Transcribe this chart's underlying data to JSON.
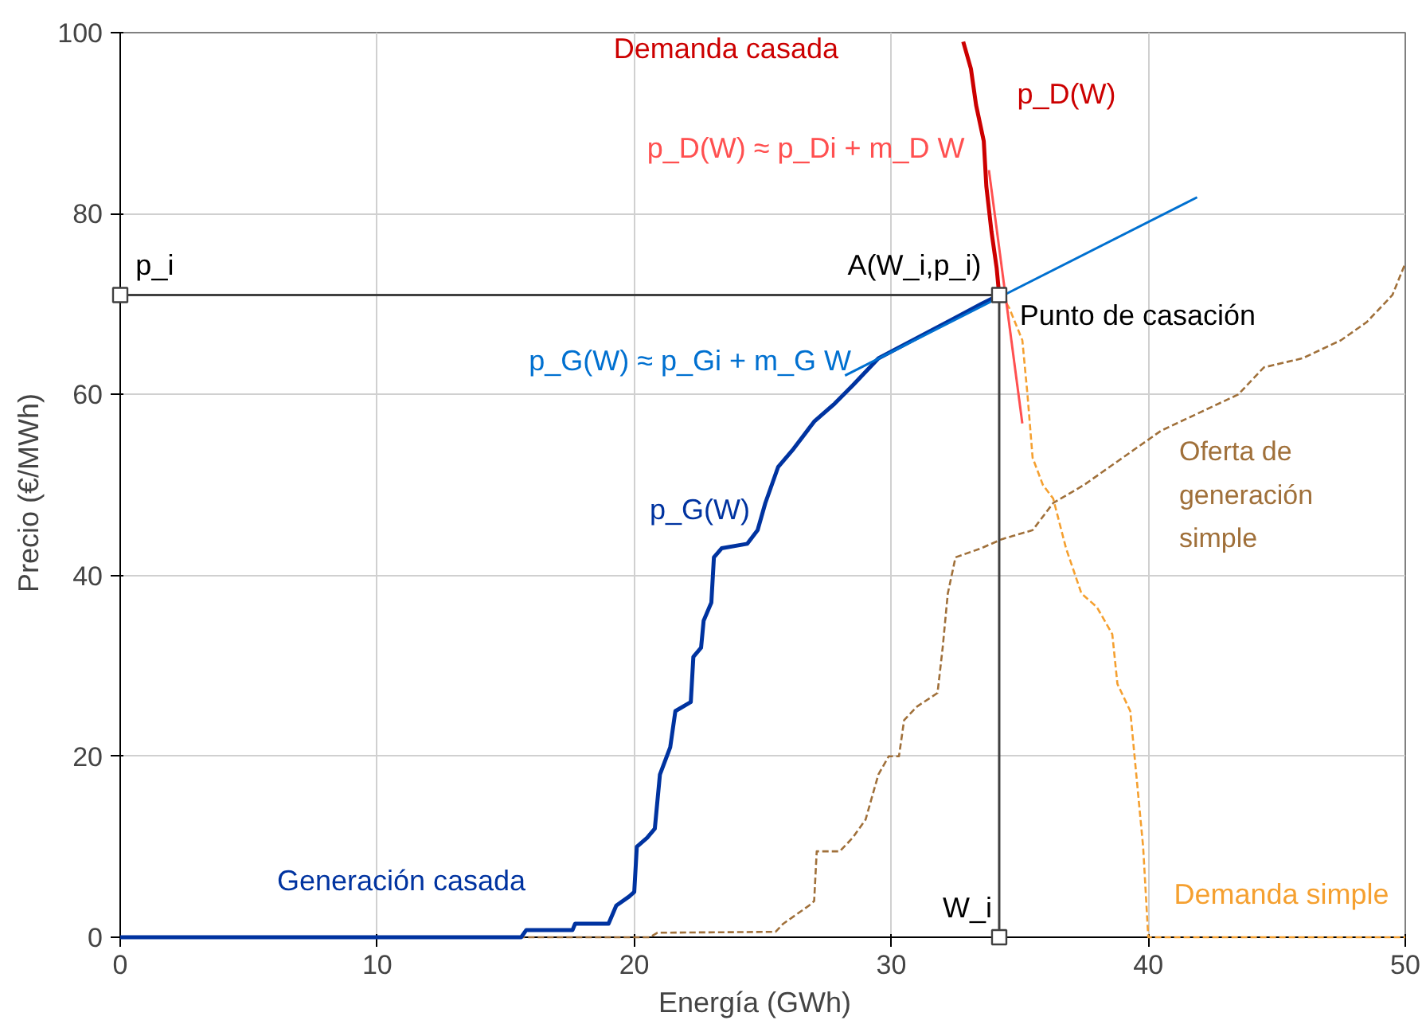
{
  "chart_data": {
    "type": "line",
    "xlabel": "Energía   (GWh)",
    "ylabel": "Precio   (€/MWh)",
    "xlim": [
      0,
      50
    ],
    "ylim": [
      0,
      100
    ],
    "xticks": [
      0,
      10,
      20,
      30,
      40,
      50
    ],
    "yticks": [
      0,
      20,
      40,
      60,
      80,
      100
    ],
    "grid": true,
    "series": [
      {
        "color": "#a0703a",
        "line_style": "dashed",
        "x": [
          15.5,
          20.6,
          20.9,
          25.5,
          25.8,
          26.3,
          26.8,
          27,
          27.1,
          28,
          28.5,
          29.0,
          29.5,
          29.9,
          30.3,
          30.5,
          31,
          31.8,
          32.0,
          32.2,
          32.5,
          33.5,
          34.3,
          35.5,
          36.3,
          37.5,
          38.5,
          39.5,
          40.5,
          42,
          43.5,
          44.5,
          46,
          47.5,
          48.5,
          49.5,
          50
        ],
        "values": [
          0,
          0,
          0.5,
          0.6,
          1.5,
          2.5,
          3.5,
          4,
          9.5,
          9.5,
          11,
          13,
          18,
          20,
          20,
          24,
          25.5,
          27,
          32,
          38,
          42,
          43,
          44,
          45,
          48,
          50,
          52,
          54,
          56,
          58,
          60,
          63,
          64,
          66,
          68,
          71,
          74.5
        ]
      },
      {
        "color": "#f5a030",
        "line_style": "dashed",
        "x": [
          34.3,
          34.6,
          35.1,
          35.3,
          35.5,
          35.9,
          36.3,
          36.8,
          37.4,
          38.0,
          38.6,
          38.8,
          39.3,
          39.6,
          39.8,
          40.0,
          50
        ],
        "values": [
          71,
          69.5,
          66,
          60,
          53,
          50,
          48.5,
          43,
          38,
          36.5,
          33.5,
          28,
          25,
          16,
          10,
          0,
          0
        ]
      },
      {
        "color": "#0033a0",
        "line_style": "solid",
        "x": [
          0,
          15.6,
          15.8,
          17.6,
          17.7,
          19.0,
          19.3,
          19.8,
          20.0,
          20.1,
          20.5,
          20.8,
          21.0,
          21.4,
          21.6,
          22.2,
          22.3,
          22.6,
          22.7,
          23.0,
          23.1,
          23.4,
          24.4,
          24.8,
          25.1,
          25.6,
          26.2,
          27.0,
          27.8,
          28.5,
          29.5,
          30.5,
          31.5,
          32.5,
          33.5,
          34.2
        ],
        "values": [
          0,
          0,
          0.8,
          0.8,
          1.5,
          1.5,
          3.5,
          4.5,
          5,
          10,
          11,
          12,
          18,
          21,
          25,
          26,
          31,
          32,
          35,
          37,
          42,
          43,
          43.5,
          45,
          48,
          52,
          54,
          57,
          59,
          61,
          64,
          65.5,
          67,
          68.5,
          70,
          71
        ]
      },
      {
        "color": "#cc0000",
        "line_style": "solid",
        "x": [
          34.2,
          34.1,
          33.9,
          33.7,
          33.6,
          33.3,
          33.1,
          32.8
        ],
        "values": [
          71,
          74,
          78,
          83,
          88,
          92,
          96,
          99
        ]
      },
      {
        "color": "#0070d0",
        "line_style": "solid",
        "x": [
          28.2,
          41.9
        ],
        "values": [
          62.1,
          81.8
        ]
      },
      {
        "color": "#ff5050",
        "line_style": "solid",
        "x": [
          33.8,
          35.1
        ],
        "values": [
          84.8,
          56.8
        ]
      },
      {
        "color": "#404040",
        "line_style": "solid",
        "marker": "square",
        "x": [
          0,
          34.2,
          34.2
        ],
        "values": [
          71,
          71,
          0
        ]
      }
    ],
    "annotations": [
      "Demanda casada",
      "p_D(W)",
      "p_D(W) ≈ p_Di + m_D W",
      "A(W_i,p_i)",
      "Punto de casación",
      "p_G(W) ≈ p_Gi + m_G W",
      "p_G(W)",
      "Oferta de generación simple",
      "Generación casada",
      "Demanda simple",
      "W_i",
      "p_i"
    ]
  }
}
